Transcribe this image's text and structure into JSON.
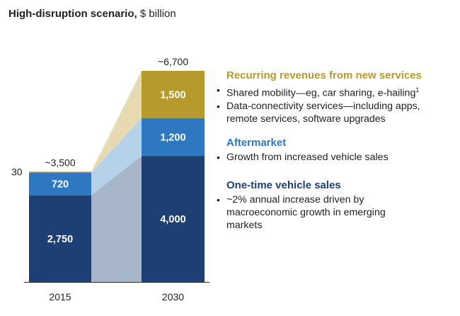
{
  "title": {
    "bold": "High-disruption scenario,",
    "rest": " $ billion"
  },
  "chart_data": {
    "type": "bar",
    "stacked": true,
    "categories": [
      "2015",
      "2030"
    ],
    "series": [
      {
        "name": "One-time vehicle sales",
        "values": [
          2750,
          4000
        ],
        "labels": [
          "2,750",
          "4,000"
        ],
        "color": "#1d3f73"
      },
      {
        "name": "Aftermarket",
        "values": [
          720,
          1200
        ],
        "labels": [
          "720",
          "1,200"
        ],
        "color": "#2e78c2"
      },
      {
        "name": "Recurring revenues from new services",
        "values": [
          30,
          1500
        ],
        "labels": [
          "30",
          "1,500"
        ],
        "color": "#b79a2b"
      }
    ],
    "totals": [
      "~3,500",
      "~6,700"
    ],
    "band_colors": [
      "#a7b6c8",
      "#b6d1ea",
      "#e7dab0"
    ],
    "ylim": [
      0,
      6700
    ]
  },
  "legend": [
    {
      "heading": "Recurring revenues from new services",
      "color": "#b79a2b",
      "items": [
        {
          "text": "Shared mobility—eg, car sharing, e-hailing",
          "sup": "1"
        },
        {
          "text": "Data-connectivity services—including apps, remote services, software upgrades"
        }
      ]
    },
    {
      "heading": "Aftermarket",
      "color": "#2e78c2",
      "items": [
        {
          "text": "Growth from increased vehicle sales"
        }
      ]
    },
    {
      "heading": "One-time vehicle sales",
      "color": "#1d3f73",
      "items": [
        {
          "text": "~2% annual increase driven by macroeconomic growth in emerging markets"
        }
      ]
    }
  ]
}
